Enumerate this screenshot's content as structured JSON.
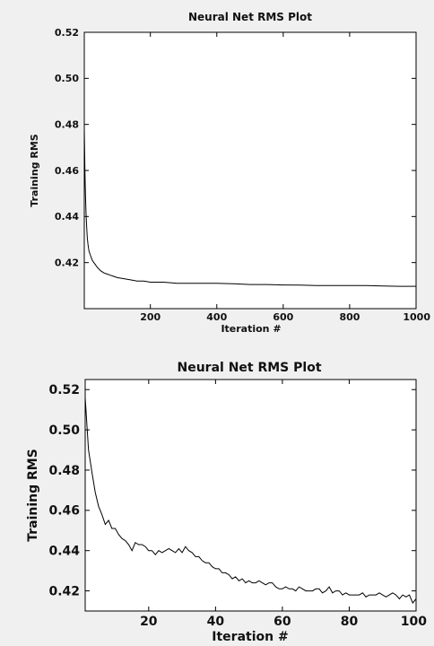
{
  "chart_data": [
    {
      "type": "line",
      "title": "Neural Net RMS Plot",
      "xlabel": "Iteration #",
      "ylabel": "Training RMS",
      "xlim": [
        1,
        1000
      ],
      "ylim": [
        0.4,
        0.52
      ],
      "xticks": [
        200,
        400,
        600,
        800,
        1000
      ],
      "xtick_labels": [
        "200",
        "400",
        "600",
        "800",
        "1000"
      ],
      "yticks": [
        0.42,
        0.44,
        0.46,
        0.48,
        0.5,
        0.52
      ],
      "ytick_labels": [
        "0.42",
        "0.44",
        "0.46",
        "0.48",
        "0.50",
        "0.52"
      ],
      "grid": false,
      "series": [
        {
          "color": "#000000",
          "x": [
            1,
            2,
            3,
            4,
            5,
            6,
            8,
            10,
            12,
            15,
            20,
            25,
            30,
            40,
            50,
            60,
            70,
            80,
            90,
            100,
            120,
            140,
            160,
            180,
            200,
            240,
            280,
            320,
            360,
            400,
            450,
            500,
            550,
            600,
            650,
            700,
            750,
            800,
            850,
            900,
            950,
            1000
          ],
          "y": [
            0.478,
            0.468,
            0.46,
            0.453,
            0.447,
            0.442,
            0.436,
            0.431,
            0.428,
            0.425,
            0.423,
            0.421,
            0.42,
            0.418,
            0.4165,
            0.4155,
            0.415,
            0.4145,
            0.414,
            0.4135,
            0.413,
            0.4125,
            0.412,
            0.412,
            0.4115,
            0.4115,
            0.411,
            0.411,
            0.411,
            0.411,
            0.4108,
            0.4105,
            0.4105,
            0.4103,
            0.4102,
            0.41,
            0.41,
            0.41,
            0.41,
            0.4098,
            0.4097,
            0.4097
          ]
        }
      ]
    },
    {
      "type": "line",
      "title": "Neural Net RMS Plot",
      "xlabel": "Iteration #",
      "ylabel": "Training RMS",
      "xlim": [
        1,
        100
      ],
      "ylim": [
        0.41,
        0.525
      ],
      "xticks": [
        20,
        40,
        60,
        80,
        100
      ],
      "xtick_labels": [
        "20",
        "40",
        "60",
        "80",
        "100"
      ],
      "yticks": [
        0.42,
        0.44,
        0.46,
        0.48,
        0.5,
        0.52
      ],
      "ytick_labels": [
        "0.42",
        "0.44",
        "0.46",
        "0.48",
        "0.50",
        "0.52"
      ],
      "grid": false,
      "series": [
        {
          "color": "#000000",
          "x": [
            1,
            2,
            3,
            4,
            5,
            6,
            7,
            8,
            9,
            10,
            11,
            12,
            13,
            14,
            15,
            16,
            17,
            18,
            19,
            20,
            21,
            22,
            23,
            24,
            25,
            26,
            27,
            28,
            29,
            30,
            31,
            32,
            33,
            34,
            35,
            36,
            37,
            38,
            39,
            40,
            41,
            42,
            43,
            44,
            45,
            46,
            47,
            48,
            49,
            50,
            51,
            52,
            53,
            54,
            55,
            56,
            57,
            58,
            59,
            60,
            61,
            62,
            63,
            64,
            65,
            66,
            67,
            68,
            69,
            70,
            71,
            72,
            73,
            74,
            75,
            76,
            77,
            78,
            79,
            80,
            81,
            82,
            83,
            84,
            85,
            86,
            87,
            88,
            89,
            90,
            91,
            92,
            93,
            94,
            95,
            96,
            97,
            98,
            99,
            100
          ],
          "y": [
            0.516,
            0.49,
            0.479,
            0.469,
            0.462,
            0.458,
            0.453,
            0.455,
            0.451,
            0.451,
            0.448,
            0.446,
            0.445,
            0.443,
            0.44,
            0.444,
            0.443,
            0.443,
            0.442,
            0.44,
            0.44,
            0.438,
            0.44,
            0.439,
            0.44,
            0.441,
            0.44,
            0.439,
            0.441,
            0.439,
            0.442,
            0.44,
            0.439,
            0.437,
            0.437,
            0.435,
            0.434,
            0.434,
            0.432,
            0.431,
            0.431,
            0.429,
            0.429,
            0.428,
            0.426,
            0.427,
            0.425,
            0.426,
            0.424,
            0.425,
            0.424,
            0.424,
            0.425,
            0.424,
            0.423,
            0.424,
            0.424,
            0.422,
            0.421,
            0.421,
            0.422,
            0.421,
            0.421,
            0.42,
            0.422,
            0.421,
            0.42,
            0.42,
            0.42,
            0.421,
            0.421,
            0.419,
            0.42,
            0.422,
            0.419,
            0.42,
            0.42,
            0.418,
            0.419,
            0.418,
            0.418,
            0.418,
            0.418,
            0.419,
            0.417,
            0.418,
            0.418,
            0.418,
            0.419,
            0.418,
            0.417,
            0.418,
            0.419,
            0.418,
            0.416,
            0.418,
            0.417,
            0.418,
            0.414,
            0.416
          ]
        }
      ]
    }
  ]
}
